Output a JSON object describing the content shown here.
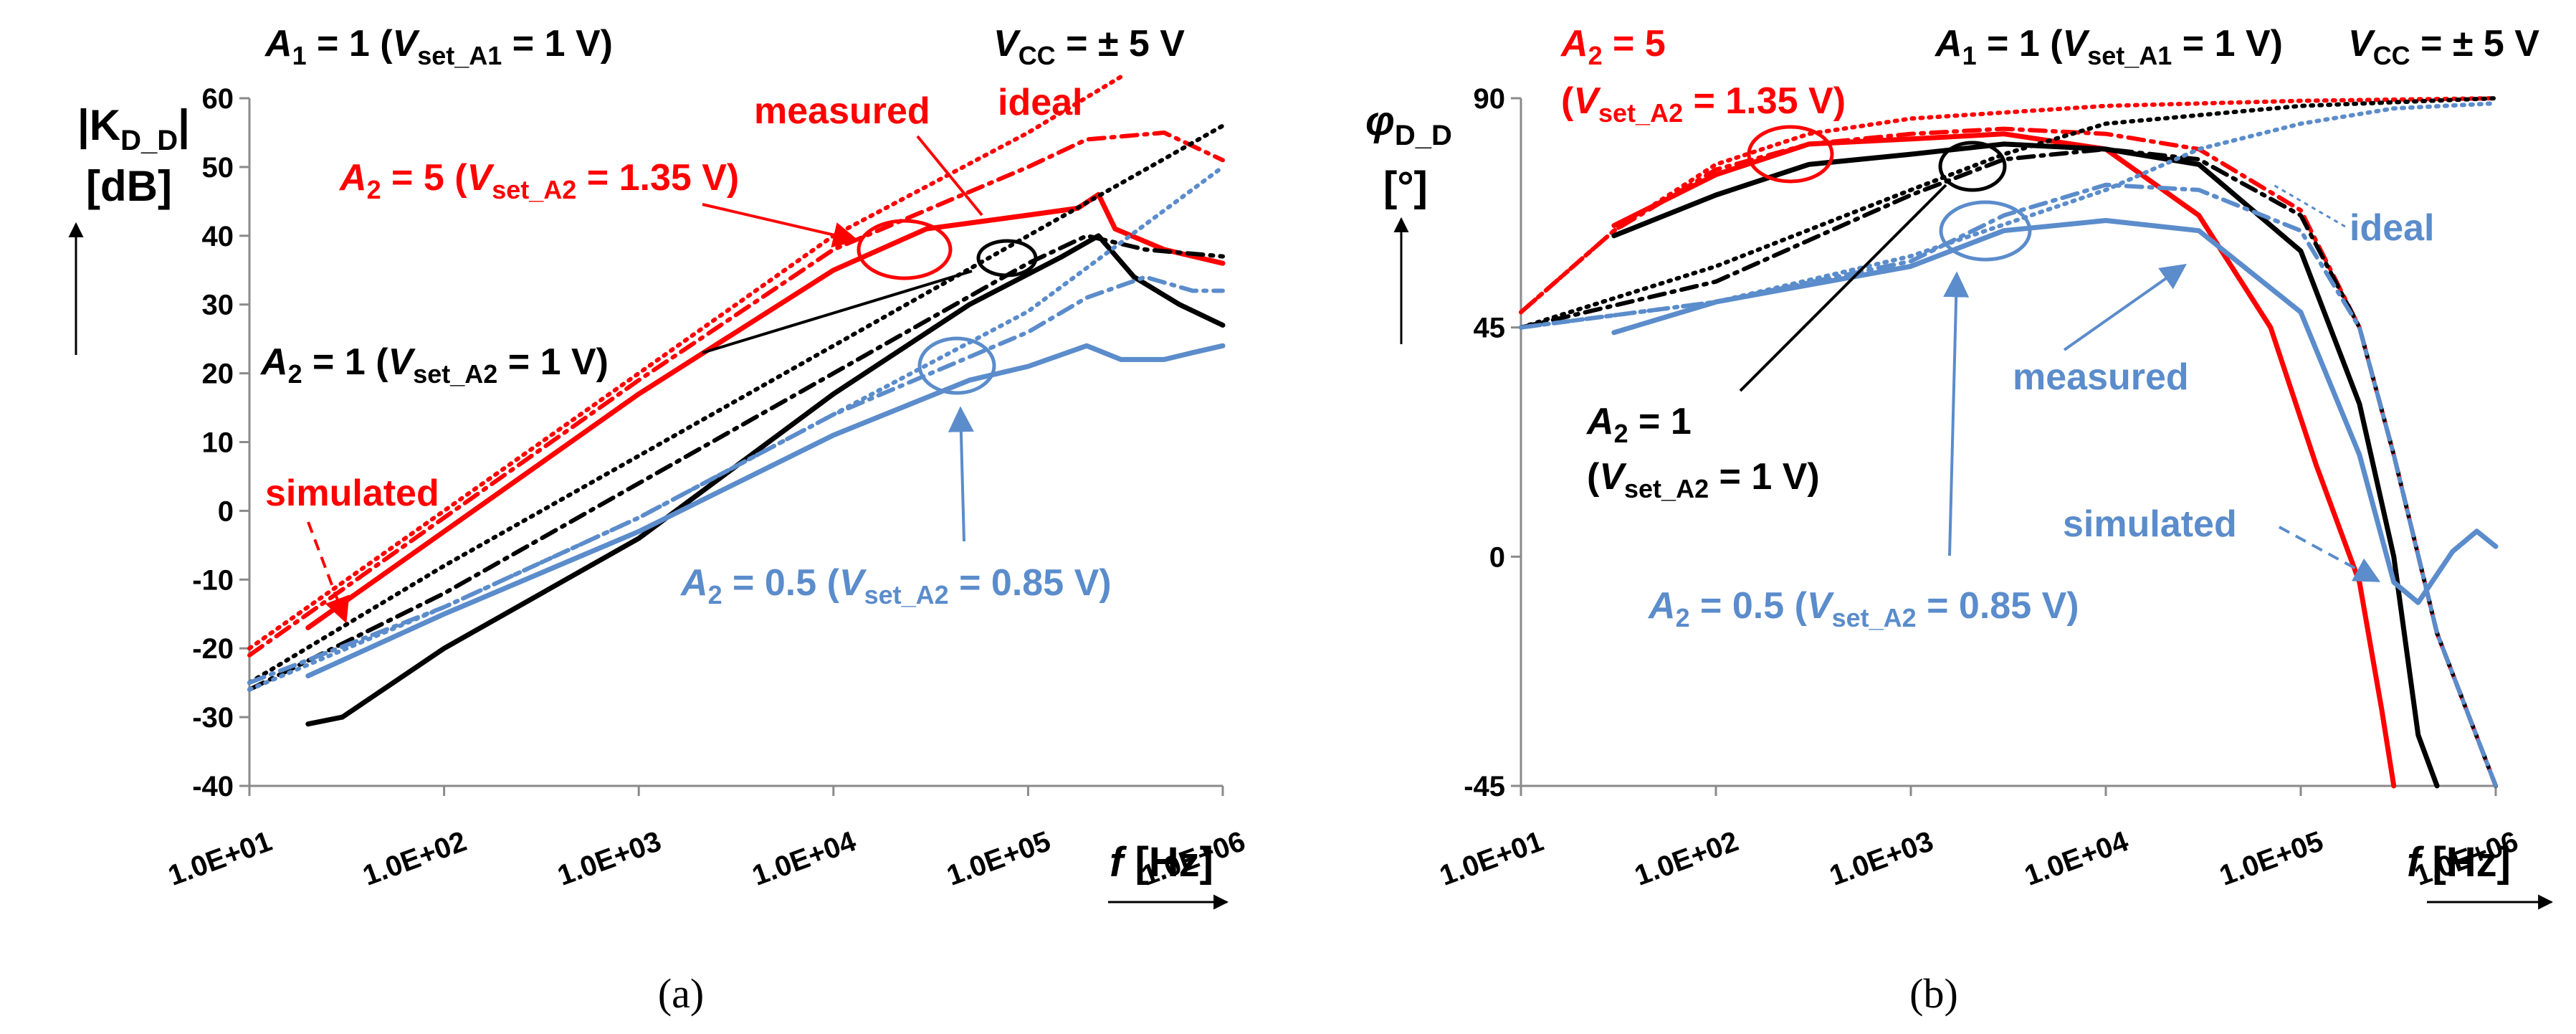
{
  "colors": {
    "red": "#ff0000",
    "black": "#000000",
    "blue": "#5b8ccb",
    "axis": "#8a8a8a"
  },
  "chart_data": [
    {
      "panel": "a",
      "caption": "(a)",
      "type": "line",
      "x_scale": "log",
      "xlim": [
        10,
        1000000
      ],
      "ylim": [
        -40,
        60
      ],
      "x_ticks": [
        {
          "v": 10,
          "label": "1.0E+01"
        },
        {
          "v": 100,
          "label": "1.0E+02"
        },
        {
          "v": 1000,
          "label": "1.0E+03"
        },
        {
          "v": 10000,
          "label": "1.0E+04"
        },
        {
          "v": 100000,
          "label": "1.0E+05"
        },
        {
          "v": 1000000,
          "label": "1.0E+06"
        }
      ],
      "y_ticks": [
        {
          "v": 60,
          "label": "60"
        },
        {
          "v": 50,
          "label": "50"
        },
        {
          "v": 40,
          "label": "40"
        },
        {
          "v": 30,
          "label": "30"
        },
        {
          "v": 20,
          "label": "20"
        },
        {
          "v": 10,
          "label": "10"
        },
        {
          "v": 0,
          "label": "0"
        },
        {
          "v": -10,
          "label": "-10"
        },
        {
          "v": -20,
          "label": "-20"
        },
        {
          "v": -30,
          "label": "-30"
        },
        {
          "v": -40,
          "label": "-40"
        }
      ],
      "ylabel": {
        "main": "|K",
        "sub": "D_D",
        "tail": "|",
        "unit": "[dB]"
      },
      "xlabel": {
        "sym": "f",
        "unit": " [Hz]"
      },
      "header": {
        "a1_sym": "A",
        "a1_sub": "1",
        "a1_eq": " = 1 (",
        "a1_v": "V",
        "a1_vsub": "set_A1",
        "a1_tail": " = 1 V)",
        "vcc_sym": "V",
        "vcc_sub": "CC",
        "vcc_tail": " = ± 5 V"
      },
      "annotations": {
        "measured": "measured",
        "ideal": "ideal",
        "simulated": "simulated",
        "a2_5": {
          "sym": "A",
          "sub": "2",
          "eq": " = 5 (",
          "v": "V",
          "vsub": "set_A2",
          "tail": " = 1.35 V)"
        },
        "a2_1": {
          "sym": "A",
          "sub": "2",
          "eq": " = 1 (",
          "v": "V",
          "vsub": "set_A2",
          "tail": " = 1 V)"
        },
        "a2_05": {
          "sym": "A",
          "sub": "2",
          "eq": " = 0.5 (",
          "v": "V",
          "vsub": "set_A2",
          "tail": " = 0.85 V)"
        }
      },
      "series": [
        {
          "name": "A2=5 ideal",
          "color": "red",
          "style": "dotted",
          "points": [
            [
              10,
              -20
            ],
            [
              100,
              0
            ],
            [
              1000,
              20
            ],
            [
              10000,
              40
            ],
            [
              100000,
              55
            ],
            [
              300000,
              64
            ]
          ]
        },
        {
          "name": "A2=5 simulated",
          "color": "red",
          "style": "dashdot",
          "points": [
            [
              10,
              -21
            ],
            [
              100,
              -1
            ],
            [
              1000,
              19
            ],
            [
              10000,
              38
            ],
            [
              100000,
              50
            ],
            [
              200000,
              54
            ],
            [
              500000,
              55
            ],
            [
              1000000,
              51
            ]
          ]
        },
        {
          "name": "A2=5 measured",
          "color": "red",
          "style": "solid",
          "points": [
            [
              20,
              -17
            ],
            [
              100,
              -3
            ],
            [
              1000,
              17
            ],
            [
              10000,
              35
            ],
            [
              30000,
              41
            ],
            [
              100000,
              43
            ],
            [
              180000,
              44
            ],
            [
              230000,
              46
            ],
            [
              280000,
              41
            ],
            [
              500000,
              38
            ],
            [
              1000000,
              36
            ]
          ]
        },
        {
          "name": "A2=1 ideal",
          "color": "black",
          "style": "dotted",
          "points": [
            [
              10,
              -25
            ],
            [
              100,
              -8
            ],
            [
              1000,
              8
            ],
            [
              10000,
              24
            ],
            [
              100000,
              40
            ],
            [
              1000000,
              56
            ]
          ]
        },
        {
          "name": "A2=1 simulated",
          "color": "black",
          "style": "dashdot",
          "points": [
            [
              10,
              -26
            ],
            [
              100,
              -12
            ],
            [
              1000,
              4
            ],
            [
              10000,
              20
            ],
            [
              100000,
              36
            ],
            [
              200000,
              40
            ],
            [
              400000,
              38
            ],
            [
              1000000,
              37
            ]
          ]
        },
        {
          "name": "A2=1 measured",
          "color": "black",
          "style": "solid",
          "points": [
            [
              20,
              -31
            ],
            [
              30,
              -30
            ],
            [
              100,
              -20
            ],
            [
              1000,
              -4
            ],
            [
              10000,
              17
            ],
            [
              50000,
              30
            ],
            [
              150000,
              37
            ],
            [
              230000,
              40
            ],
            [
              350000,
              34
            ],
            [
              600000,
              30
            ],
            [
              1000000,
              27
            ]
          ]
        },
        {
          "name": "A2=0.5 ideal",
          "color": "blue",
          "style": "dotted",
          "points": [
            [
              10,
              -26
            ],
            [
              100,
              -14
            ],
            [
              1000,
              -1
            ],
            [
              10000,
              14
            ],
            [
              100000,
              29
            ],
            [
              1000000,
              50
            ]
          ]
        },
        {
          "name": "A2=0.5 simulated",
          "color": "blue",
          "style": "dashdot",
          "points": [
            [
              10,
              -25
            ],
            [
              100,
              -14
            ],
            [
              1000,
              -1
            ],
            [
              10000,
              14
            ],
            [
              100000,
              26
            ],
            [
              200000,
              31
            ],
            [
              400000,
              34
            ],
            [
              700000,
              32
            ],
            [
              1000000,
              32
            ]
          ]
        },
        {
          "name": "A2=0.5 measured",
          "color": "blue",
          "style": "solid",
          "points": [
            [
              20,
              -24
            ],
            [
              100,
              -15
            ],
            [
              1000,
              -3
            ],
            [
              10000,
              11
            ],
            [
              50000,
              19
            ],
            [
              100000,
              21
            ],
            [
              200000,
              24
            ],
            [
              300000,
              22
            ],
            [
              500000,
              22
            ],
            [
              700000,
              23
            ],
            [
              1000000,
              24
            ]
          ]
        }
      ]
    },
    {
      "panel": "b",
      "caption": "(b)",
      "type": "line",
      "x_scale": "log",
      "xlim": [
        10,
        1000000
      ],
      "ylim": [
        -45,
        90
      ],
      "x_ticks": [
        {
          "v": 10,
          "label": "1.0E+01"
        },
        {
          "v": 100,
          "label": "1.0E+02"
        },
        {
          "v": 1000,
          "label": "1.0E+03"
        },
        {
          "v": 10000,
          "label": "1.0E+04"
        },
        {
          "v": 100000,
          "label": "1.0E+05"
        },
        {
          "v": 1000000,
          "label": "1.0E+06"
        }
      ],
      "y_ticks": [
        {
          "v": 90,
          "label": "90"
        },
        {
          "v": 45,
          "label": "45"
        },
        {
          "v": 0,
          "label": "0"
        },
        {
          "v": -45,
          "label": "-45"
        }
      ],
      "ylabel": {
        "main": "φ",
        "sub": "D_D",
        "unit": "[°]"
      },
      "xlabel": {
        "sym": "f",
        "unit": " [Hz]"
      },
      "header": {
        "a1_sym": "A",
        "a1_sub": "1",
        "a1_eq": " = 1 (",
        "a1_v": "V",
        "a1_vsub": "set_A1",
        "a1_tail": " = 1 V)",
        "vcc_sym": "V",
        "vcc_sub": "CC",
        "vcc_tail": " = ± 5 V"
      },
      "annotations": {
        "measured": "measured",
        "ideal": "ideal",
        "simulated": "simulated",
        "a2_5": {
          "sym": "A",
          "sub": "2",
          "eq": " = 5",
          "open": "(",
          "v": "V",
          "vsub": "set_A2",
          "tail": " = 1.35 V)"
        },
        "a2_1": {
          "sym": "A",
          "sub": "2",
          "eq": " = 1",
          "open": "(",
          "v": "V",
          "vsub": "set_A2",
          "tail": " = 1 V)"
        },
        "a2_05": {
          "sym": "A",
          "sub": "2",
          "eq": " = 0.5 (",
          "v": "V",
          "vsub": "set_A2",
          "tail": " = 0.85 V)"
        }
      },
      "series": [
        {
          "name": "A2=5 ideal",
          "color": "red",
          "style": "dotted",
          "points": [
            [
              10,
              48
            ],
            [
              30,
              64
            ],
            [
              100,
              77
            ],
            [
              300,
              83
            ],
            [
              1000,
              86
            ],
            [
              10000,
              88.5
            ],
            [
              100000,
              89.5
            ],
            [
              1000000,
              90
            ]
          ]
        },
        {
          "name": "A2=5 simulated",
          "color": "red",
          "style": "dashdot",
          "points": [
            [
              10,
              48
            ],
            [
              30,
              64
            ],
            [
              100,
              76
            ],
            [
              300,
              81
            ],
            [
              1000,
              83
            ],
            [
              3000,
              84
            ],
            [
              10000,
              83
            ],
            [
              30000,
              80
            ],
            [
              100000,
              68
            ],
            [
              200000,
              45
            ],
            [
              300000,
              20
            ],
            [
              500000,
              -15
            ],
            [
              1000000,
              -45
            ]
          ]
        },
        {
          "name": "A2=5 measured",
          "color": "red",
          "style": "solid",
          "points": [
            [
              30,
              65
            ],
            [
              100,
              75
            ],
            [
              300,
              81
            ],
            [
              1000,
              82
            ],
            [
              3000,
              83
            ],
            [
              10000,
              80
            ],
            [
              30000,
              67
            ],
            [
              70000,
              45
            ],
            [
              120000,
              18
            ],
            [
              200000,
              -5
            ],
            [
              260000,
              -30
            ],
            [
              300000,
              -45
            ]
          ]
        },
        {
          "name": "A2=1 ideal",
          "color": "black",
          "style": "dotted",
          "points": [
            [
              10,
              45
            ],
            [
              100,
              57
            ],
            [
              1000,
              72
            ],
            [
              3000,
              79
            ],
            [
              10000,
              85
            ],
            [
              100000,
              88.5
            ],
            [
              1000000,
              90
            ]
          ]
        },
        {
          "name": "A2=1 simulated",
          "color": "black",
          "style": "dashdot",
          "points": [
            [
              10,
              45
            ],
            [
              100,
              54
            ],
            [
              1000,
              71
            ],
            [
              3000,
              78
            ],
            [
              10000,
              80
            ],
            [
              30000,
              78
            ],
            [
              100000,
              67
            ],
            [
              200000,
              45
            ],
            [
              300000,
              20
            ],
            [
              500000,
              -15
            ],
            [
              1000000,
              -45
            ]
          ]
        },
        {
          "name": "A2=1 measured",
          "color": "black",
          "style": "solid",
          "points": [
            [
              30,
              63
            ],
            [
              100,
              71
            ],
            [
              300,
              77
            ],
            [
              1000,
              79
            ],
            [
              3000,
              81
            ],
            [
              10000,
              80
            ],
            [
              30000,
              77
            ],
            [
              100000,
              60
            ],
            [
              200000,
              30
            ],
            [
              300000,
              0
            ],
            [
              400000,
              -35
            ],
            [
              500000,
              -45
            ]
          ]
        },
        {
          "name": "A2=0.5 ideal",
          "color": "blue",
          "style": "dotted",
          "points": [
            [
              10,
              45
            ],
            [
              100,
              50
            ],
            [
              1000,
              59
            ],
            [
              10000,
              72
            ],
            [
              30000,
              80
            ],
            [
              100000,
              85
            ],
            [
              300000,
              88
            ],
            [
              1000000,
              89
            ]
          ]
        },
        {
          "name": "A2=0.5 simulated",
          "color": "blue",
          "style": "dashdot",
          "points": [
            [
              10,
              45
            ],
            [
              100,
              50
            ],
            [
              1000,
              58
            ],
            [
              3000,
              67
            ],
            [
              10000,
              73
            ],
            [
              30000,
              72
            ],
            [
              100000,
              64
            ],
            [
              200000,
              45
            ],
            [
              300000,
              20
            ],
            [
              500000,
              -15
            ],
            [
              1000000,
              -45
            ]
          ]
        },
        {
          "name": "A2=0.5 measured",
          "color": "blue",
          "style": "solid",
          "points": [
            [
              30,
              44
            ],
            [
              100,
              50
            ],
            [
              1000,
              57
            ],
            [
              3000,
              64
            ],
            [
              10000,
              66
            ],
            [
              30000,
              64
            ],
            [
              100000,
              48
            ],
            [
              200000,
              20
            ],
            [
              300000,
              -5
            ],
            [
              400000,
              -9
            ],
            [
              600000,
              1
            ],
            [
              800000,
              5
            ],
            [
              1000000,
              2
            ]
          ]
        }
      ]
    }
  ]
}
